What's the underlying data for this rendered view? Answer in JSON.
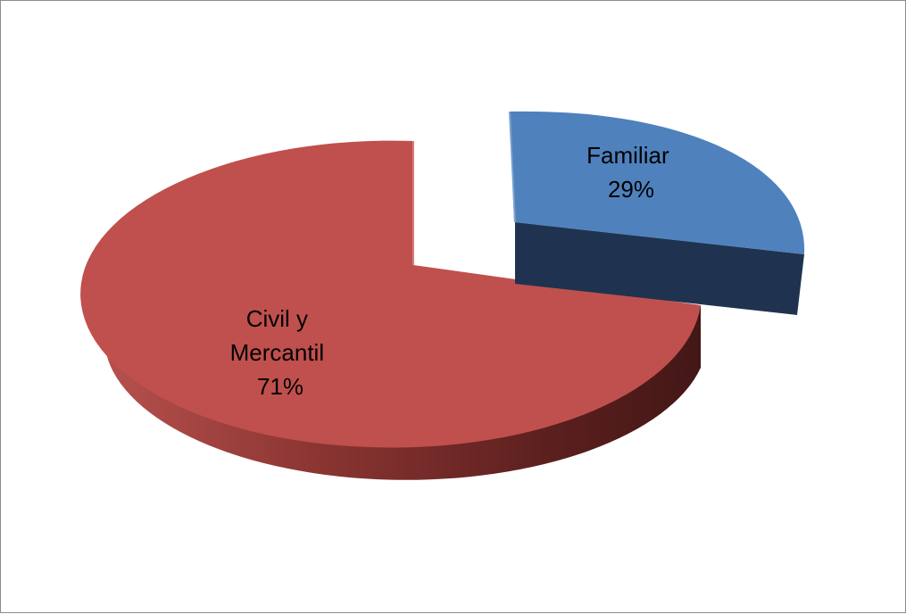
{
  "chart_data": {
    "type": "pie",
    "title": "",
    "slices": [
      {
        "label": "Familiar",
        "percent_label": "29%",
        "value": 29,
        "color": "#4f81bd",
        "side_color": "#1f3350"
      },
      {
        "label": "Civil y Mercantil",
        "label_lines": [
          "Civil y",
          "Mercantil"
        ],
        "percent_label": "71%",
        "value": 71,
        "color": "#c0504d",
        "side_color": "#6e2624"
      }
    ],
    "style": "3d-exploded",
    "legend": "none"
  }
}
